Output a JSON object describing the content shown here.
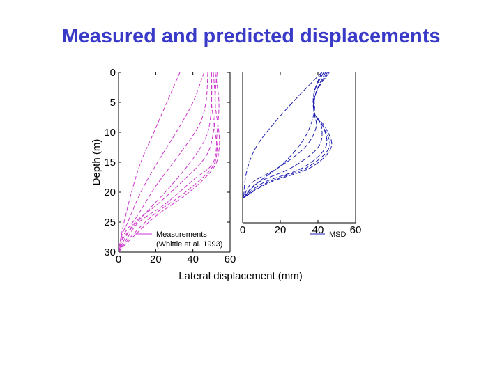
{
  "slide": {
    "title": "Measured and predicted displacements"
  },
  "colors": {
    "title": "#3a3ac8",
    "measured": "#cc33cc",
    "predicted": "#1c1cb0"
  },
  "chart_data": [
    {
      "type": "line",
      "panel": "left",
      "ylabel": "Depth (m)",
      "xlabel": "",
      "xlim": [
        0,
        60
      ],
      "ylim": [
        30,
        0
      ],
      "x_ticks": [
        0,
        20,
        40,
        60
      ],
      "y_ticks": [
        0,
        5,
        10,
        15,
        20,
        25,
        30
      ],
      "grid": false,
      "legend": {
        "placement": "bottom-right",
        "entries": [
          "Measurements",
          "(Whittle et al. 1993)"
        ]
      },
      "series": [
        {
          "name": "Measurements",
          "x": [
            33,
            26,
            19,
            12,
            7,
            3,
            1,
            0
          ],
          "y": [
            0,
            5,
            10,
            15,
            20,
            25,
            28,
            30
          ]
        },
        {
          "x": [
            46,
            40,
            31,
            21,
            12,
            5,
            2,
            1,
            0
          ],
          "y": [
            0,
            5,
            10,
            15,
            20,
            25,
            27,
            29,
            30
          ]
        },
        {
          "x": [
            48,
            47,
            43,
            32,
            20,
            10,
            3,
            1,
            0
          ],
          "y": [
            0,
            5,
            9,
            14,
            19,
            24,
            27,
            29,
            30
          ]
        },
        {
          "x": [
            50,
            50,
            48,
            41,
            28,
            16,
            7,
            2,
            0
          ],
          "y": [
            0,
            5,
            10,
            14,
            19,
            23,
            26,
            28,
            30
          ]
        },
        {
          "x": [
            51,
            52,
            51,
            47,
            35,
            21,
            9,
            3,
            0
          ],
          "y": [
            0,
            5,
            10,
            14,
            18,
            22,
            25,
            28,
            30
          ]
        },
        {
          "x": [
            52,
            54,
            53,
            51,
            40,
            25,
            11,
            4,
            0
          ],
          "y": [
            0,
            5,
            10,
            15,
            18,
            22,
            25,
            28,
            30
          ]
        },
        {
          "x": [
            50,
            50,
            52,
            53,
            50,
            36,
            18,
            5,
            0
          ],
          "y": [
            0,
            5,
            10,
            13,
            16,
            20,
            24,
            28,
            30
          ]
        },
        {
          "x": [
            53,
            52,
            54,
            54,
            51,
            38,
            20,
            6,
            0
          ],
          "y": [
            0,
            5,
            10,
            13,
            16,
            20,
            24,
            28,
            30
          ]
        }
      ]
    },
    {
      "type": "line",
      "panel": "right",
      "xlabel": "Lateral displacement (mm)",
      "ylabel": "",
      "xlim": [
        0,
        60
      ],
      "ylim": [
        30,
        0
      ],
      "x_ticks": [
        0,
        20,
        40,
        60
      ],
      "y_ticks": [],
      "grid": false,
      "legend": {
        "placement": "bottom-right",
        "entries": [
          "MSD"
        ]
      },
      "series": [
        {
          "name": "MSD",
          "x": [
            42,
            29,
            17,
            7,
            2,
            0.5
          ],
          "y": [
            0,
            5,
            10,
            15,
            20,
            25
          ]
        },
        {
          "x": [
            42,
            38,
            38,
            33,
            22,
            8,
            0.5
          ],
          "y": [
            0,
            4,
            8,
            13,
            18,
            22,
            25
          ]
        },
        {
          "x": [
            42,
            38,
            38,
            39,
            33,
            19,
            5,
            0.5
          ],
          "y": [
            0,
            4,
            8,
            11,
            15,
            19,
            22,
            25
          ]
        },
        {
          "x": [
            43,
            38,
            38,
            42,
            40,
            26,
            8,
            0.5
          ],
          "y": [
            0,
            4,
            8,
            11,
            15,
            19,
            22,
            25
          ]
        },
        {
          "x": [
            44,
            39,
            38,
            43,
            44,
            32,
            11,
            0.5
          ],
          "y": [
            0,
            4,
            8,
            11,
            15,
            19,
            22,
            25
          ]
        },
        {
          "x": [
            45,
            39,
            38,
            43,
            46,
            34,
            13,
            0.5
          ],
          "y": [
            0,
            4,
            8,
            11,
            15,
            19,
            22,
            25
          ]
        },
        {
          "x": [
            46,
            39,
            38,
            44,
            47,
            36,
            14,
            0.5
          ],
          "y": [
            0,
            4,
            8,
            11,
            15,
            19,
            22,
            25
          ]
        }
      ]
    }
  ]
}
